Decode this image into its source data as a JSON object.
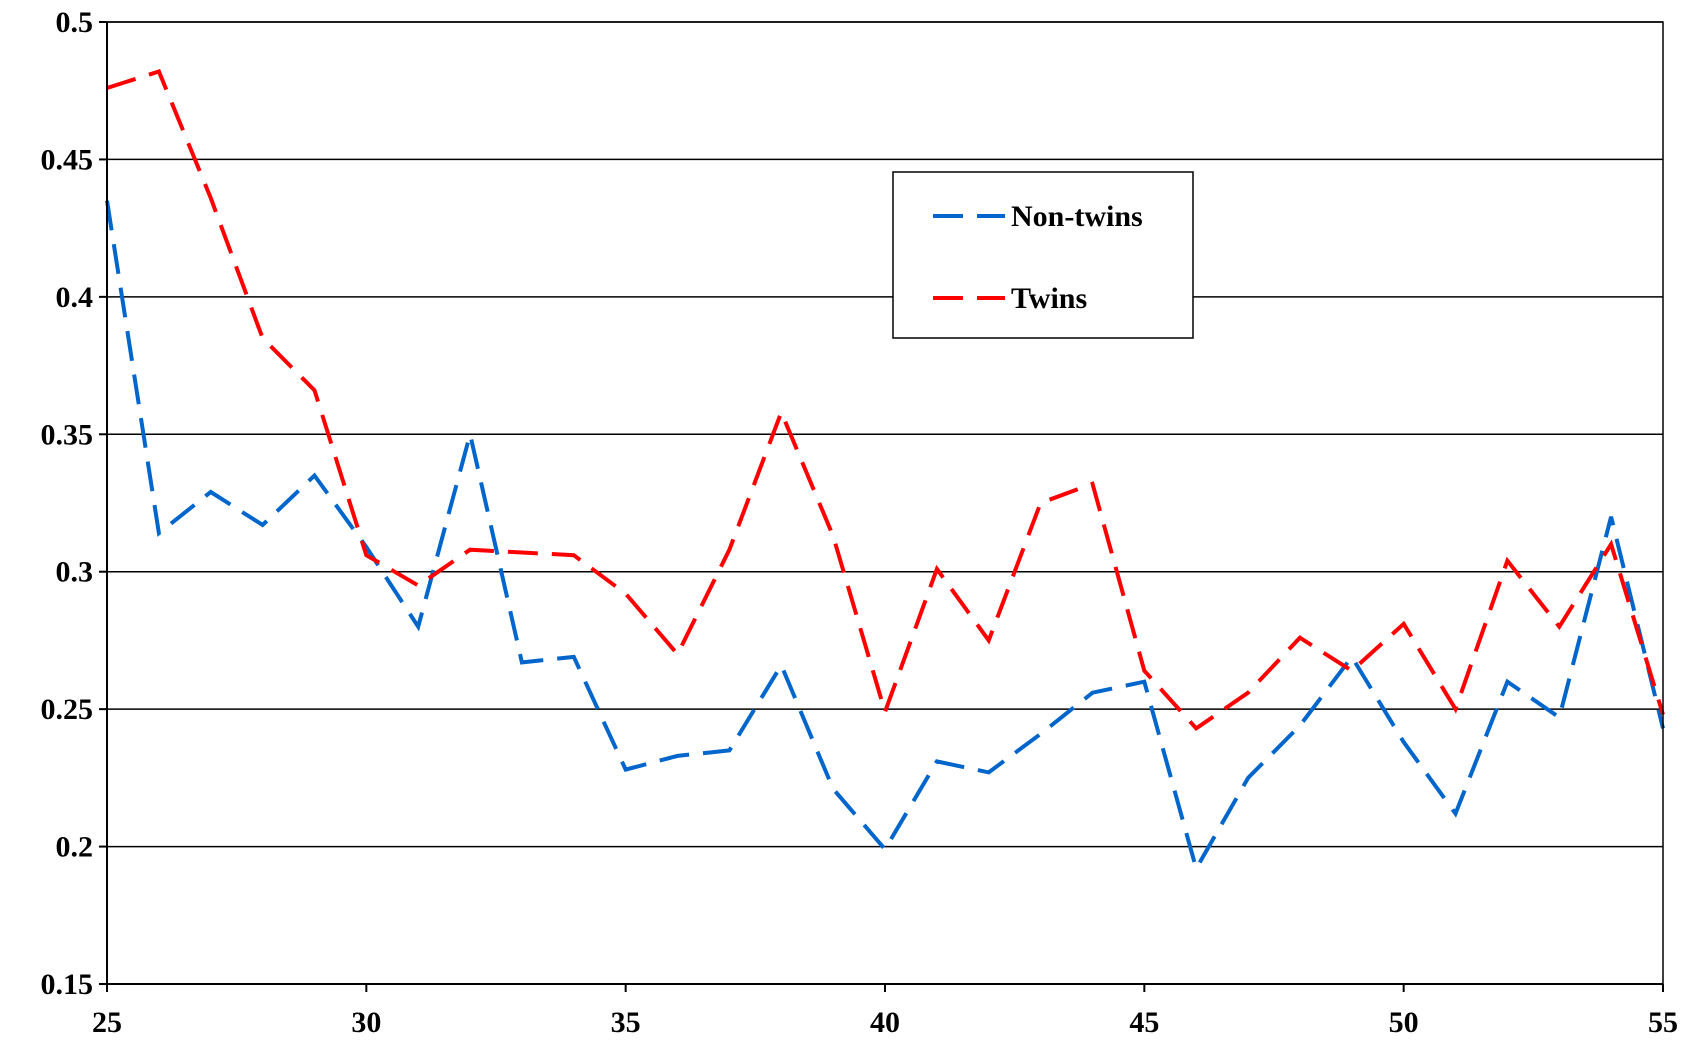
{
  "chart_data": {
    "type": "line",
    "title": "",
    "xlabel": "",
    "ylabel": "",
    "xlim": [
      25,
      55
    ],
    "ylim": [
      0.15,
      0.5
    ],
    "x_ticks": [
      25,
      30,
      35,
      40,
      45,
      50,
      55
    ],
    "x_tick_labels": [
      "25",
      "30",
      "35",
      "40",
      "45",
      "50",
      "55"
    ],
    "y_ticks": [
      0.15,
      0.2,
      0.25,
      0.3,
      0.35,
      0.4,
      0.45,
      0.5
    ],
    "y_tick_labels": [
      "0.15",
      "0.2",
      "0.25",
      "0.3",
      "0.35",
      "0.4",
      "0.45",
      "0.5"
    ],
    "grid": "horizontal",
    "legend_position": "top-right-inside",
    "x": [
      25,
      26,
      27,
      28,
      29,
      30,
      31,
      32,
      33,
      34,
      35,
      36,
      37,
      38,
      39,
      40,
      41,
      42,
      43,
      44,
      45,
      46,
      47,
      48,
      49,
      50,
      51,
      52,
      53,
      54,
      55
    ],
    "series": [
      {
        "name": "Non-twins",
        "color": "#0066cc",
        "values": [
          0.435,
          0.314,
          0.329,
          0.317,
          0.335,
          0.309,
          0.28,
          0.35,
          0.267,
          0.269,
          0.228,
          0.233,
          0.235,
          0.266,
          0.221,
          0.199,
          0.231,
          0.227,
          0.241,
          0.256,
          0.26,
          0.192,
          0.225,
          0.244,
          0.269,
          0.238,
          0.212,
          0.26,
          0.247,
          0.32,
          0.243
        ]
      },
      {
        "name": "Twins",
        "color": "#ff0000",
        "values": [
          0.476,
          0.482,
          0.436,
          0.385,
          0.366,
          0.306,
          0.295,
          0.308,
          0.307,
          0.306,
          0.292,
          0.27,
          0.308,
          0.358,
          0.313,
          0.249,
          0.301,
          0.275,
          0.325,
          0.332,
          0.264,
          0.243,
          0.256,
          0.276,
          0.264,
          0.281,
          0.25,
          0.304,
          0.28,
          0.31,
          0.248
        ]
      }
    ]
  }
}
